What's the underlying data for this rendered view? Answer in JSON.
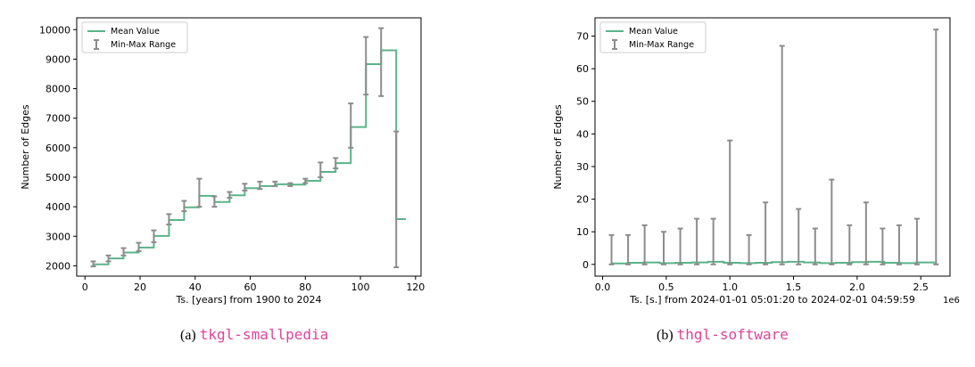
{
  "chart_data": [
    {
      "type": "line",
      "step": true,
      "xlabel": "Ts. [years] from 1900 to 2024",
      "ylabel": "Number of Edges",
      "xlim": [
        -3,
        122
      ],
      "ylim": [
        1650,
        10400
      ],
      "xticks": [
        0,
        20,
        40,
        60,
        80,
        100,
        120
      ],
      "yticks": [
        2000,
        3000,
        4000,
        5000,
        6000,
        7000,
        8000,
        9000,
        10000
      ],
      "legend_position": "upper-left",
      "legend": {
        "mean": "Mean Value",
        "range": "Min-Max Range"
      },
      "colors": {
        "mean": "#5bb38a",
        "range": "#8c8c8c"
      },
      "x": [
        3,
        8.5,
        14,
        19.5,
        25,
        30.5,
        36,
        41.5,
        47,
        52.5,
        58,
        63.5,
        69,
        74.5,
        80,
        85.5,
        91,
        96.5,
        102,
        107.5,
        113,
        116.5
      ],
      "mean": [
        2050,
        2250,
        2450,
        2620,
        3010,
        3550,
        3980,
        4370,
        4160,
        4390,
        4630,
        4700,
        4760,
        4750,
        4880,
        5180,
        5480,
        6700,
        8830,
        9300,
        3580,
        3580
      ],
      "min": [
        1980,
        2150,
        2350,
        2500,
        2800,
        3400,
        3850,
        4000,
        4000,
        4300,
        4550,
        4600,
        4700,
        4700,
        4800,
        5000,
        5300,
        6000,
        7800,
        7750,
        1950,
        null
      ],
      "max": [
        2150,
        2350,
        2600,
        2780,
        3200,
        3750,
        4200,
        4950,
        4350,
        4500,
        4780,
        4850,
        4850,
        4800,
        4950,
        5500,
        5650,
        7500,
        9750,
        10050,
        6550,
        null
      ]
    },
    {
      "type": "line",
      "step": true,
      "xlabel": "Ts. [s.] from 2024-01-01 05:01:20 to 2024-02-01 04:59:59",
      "ylabel": "Number of Edges",
      "offset_label": "1e6",
      "xlim": [
        -0.06,
        2.73
      ],
      "ylim": [
        -3.6,
        75.6
      ],
      "xticks": [
        0.0,
        0.5,
        1.0,
        1.5,
        2.0,
        2.5
      ],
      "xtick_labels": [
        "0.0",
        "0.5",
        "1.0",
        "1.5",
        "2.0",
        "2.5"
      ],
      "yticks": [
        0,
        10,
        20,
        30,
        40,
        50,
        60,
        70
      ],
      "legend_position": "upper-left",
      "legend": {
        "mean": "Mean Value",
        "range": "Min-Max Range"
      },
      "colors": {
        "mean": "#5bb38a",
        "range": "#8c8c8c"
      },
      "x": [
        0.07,
        0.196,
        0.322,
        0.448,
        0.574,
        0.7,
        0.826,
        0.952,
        1.078,
        1.204,
        1.33,
        1.456,
        1.582,
        1.708,
        1.834,
        1.96,
        2.086,
        2.212,
        2.338,
        2.464,
        2.61
      ],
      "mean": [
        0.3,
        0.5,
        0.6,
        0.4,
        0.5,
        0.6,
        0.8,
        0.5,
        0.4,
        0.5,
        0.7,
        0.8,
        0.6,
        0.4,
        0.5,
        0.7,
        0.8,
        0.5,
        0.4,
        0.6,
        0.7
      ],
      "min": [
        0,
        0,
        0,
        0,
        0,
        0,
        0,
        0,
        0,
        0,
        0,
        0,
        0,
        0,
        0,
        0,
        0,
        0,
        0,
        0,
        0
      ],
      "max": [
        9,
        9,
        12,
        10,
        11,
        14,
        14,
        38,
        9,
        19,
        67,
        17,
        11,
        26,
        12,
        19,
        11,
        12,
        14,
        72,
        72
      ],
      "error_x": [
        0.07,
        0.2,
        0.33,
        0.48,
        0.61,
        0.74,
        0.87,
        1.0,
        1.15,
        1.28,
        1.41,
        1.54,
        1.67,
        1.8,
        1.94,
        2.07,
        2.2,
        2.33,
        2.47,
        2.62
      ]
    }
  ],
  "captions": [
    {
      "label": "(a)",
      "code": "tkgl-smallpedia"
    },
    {
      "label": "(b)",
      "code": "thgl-software"
    }
  ]
}
